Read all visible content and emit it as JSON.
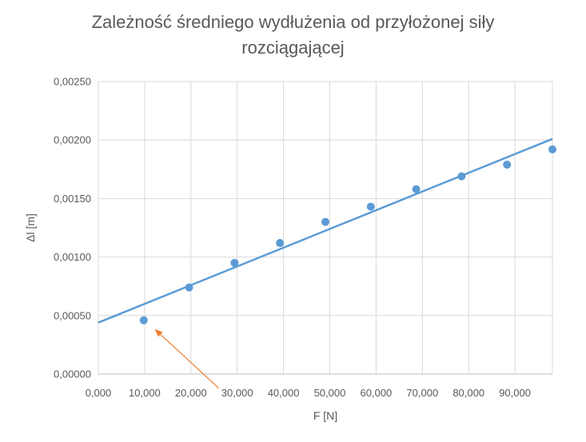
{
  "chart_data": {
    "type": "scatter",
    "title": "Zależność średniego wydłużenia od przyłożonej siły rozciągającej",
    "title_lines": [
      "Zależność średniego wydłużenia od przyłożonej siły",
      "rozciągającej"
    ],
    "xlabel": "F [N]",
    "ylabel": "Δl [m]",
    "xlim": [
      0,
      98100
    ],
    "ylim": [
      0,
      0.0025
    ],
    "x_ticks": [
      "0,000",
      "10,000",
      "20,000",
      "30,000",
      "40,000",
      "50,000",
      "60,000",
      "70,000",
      "80,000",
      "90,000"
    ],
    "x_tick_values": [
      0,
      10000,
      20000,
      30000,
      40000,
      50000,
      60000,
      70000,
      80000,
      90000
    ],
    "y_ticks": [
      "0,00000",
      "0,00050",
      "0,00100",
      "0,00150",
      "0,00200",
      "0,00250"
    ],
    "y_tick_values": [
      0,
      0.0005,
      0.001,
      0.0015,
      0.002,
      0.0025
    ],
    "grid": true,
    "legend": "none",
    "series": [
      {
        "color": "#5b9bd5",
        "x": [
          9810,
          19620,
          29430,
          39240,
          49050,
          58860,
          68670,
          78480,
          88290,
          98100
        ],
        "y": [
          0.00046,
          0.00074,
          0.00095,
          0.00112,
          0.0013,
          0.00143,
          0.00158,
          0.00169,
          0.00179,
          0.00192
        ]
      }
    ],
    "trendline": {
      "type": "linear",
      "color": "#5b9bd5",
      "intercept": 0.00044,
      "slope": 1.6e-08
    },
    "annotation": {
      "type": "arrow",
      "color": "#ed7d31",
      "from": [
        26000,
        -0.00012
      ],
      "to": [
        12300,
        0.00038
      ]
    }
  }
}
